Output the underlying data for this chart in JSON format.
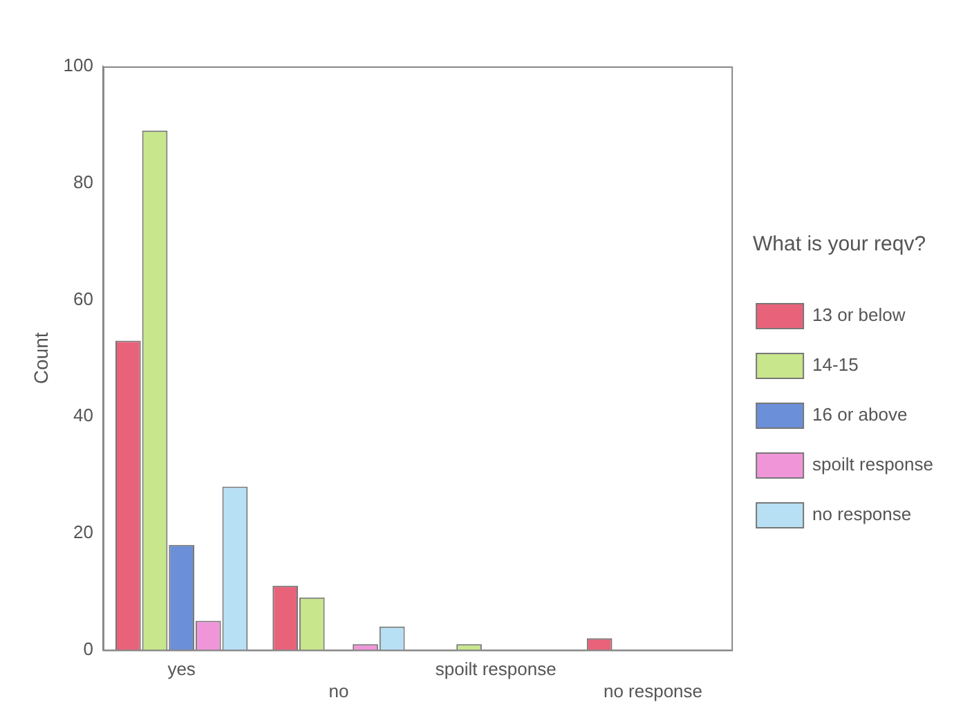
{
  "chart_data": {
    "type": "bar",
    "ylabel": "Count",
    "legend_title": "What is your reqv?",
    "categories": [
      "yes",
      "no",
      "spoilt response",
      "no response"
    ],
    "series": [
      {
        "name": "13 or below",
        "color": "#e8637a",
        "values": [
          53,
          11,
          0,
          2
        ]
      },
      {
        "name": "14-15",
        "color": "#c8e68c",
        "values": [
          89,
          9,
          1,
          0
        ]
      },
      {
        "name": "16 or above",
        "color": "#6b8fd8",
        "values": [
          18,
          0,
          0,
          0
        ]
      },
      {
        "name": "spoilt response",
        "color": "#f096d8",
        "values": [
          5,
          1,
          0,
          0
        ]
      },
      {
        "name": "no response",
        "color": "#b8e0f5",
        "values": [
          28,
          4,
          0,
          0
        ]
      }
    ],
    "ylim": [
      0,
      100
    ],
    "yticks": [
      0,
      20,
      40,
      60,
      80,
      100
    ],
    "grid": false,
    "legend": "right"
  }
}
